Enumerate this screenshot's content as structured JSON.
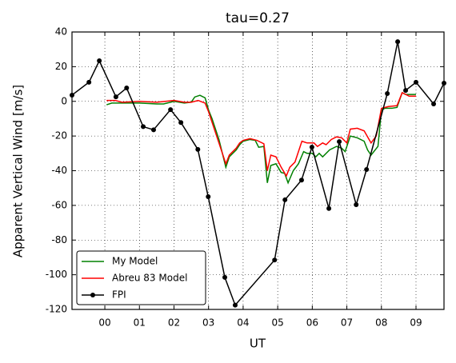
{
  "chart_data": {
    "type": "line",
    "title": "tau=0.27",
    "xlabel": "UT",
    "ylabel": "Apparent Vertical Wind [m/s]",
    "xlim": [
      -0.95,
      9.81
    ],
    "ylim": [
      -120,
      40
    ],
    "xticks": [
      {
        "value": 0,
        "label": "00"
      },
      {
        "value": 1,
        "label": "01"
      },
      {
        "value": 2,
        "label": "02"
      },
      {
        "value": 3,
        "label": "03"
      },
      {
        "value": 4,
        "label": "04"
      },
      {
        "value": 5,
        "label": "05"
      },
      {
        "value": 6,
        "label": "06"
      },
      {
        "value": 7,
        "label": "07"
      },
      {
        "value": 8,
        "label": "08"
      },
      {
        "value": 9,
        "label": "09"
      }
    ],
    "yticks": [
      -120,
      -100,
      -80,
      -60,
      -40,
      -20,
      0,
      20,
      40
    ],
    "grid": true,
    "legend": "lower left",
    "series": [
      {
        "name": "My Model",
        "color": "#008000",
        "marker": false,
        "x": [
          0.05,
          0.2,
          0.5,
          1.0,
          1.5,
          1.7,
          2.0,
          2.3,
          2.5,
          2.6,
          2.75,
          2.9,
          3.0,
          3.1,
          3.3,
          3.5,
          3.6,
          3.8,
          3.9,
          4.0,
          4.2,
          4.35,
          4.45,
          4.6,
          4.7,
          4.8,
          4.95,
          5.1,
          5.2,
          5.3,
          5.45,
          5.6,
          5.75,
          5.85,
          6.0,
          6.1,
          6.2,
          6.3,
          6.5,
          6.7,
          6.85,
          6.95,
          7.1,
          7.3,
          7.5,
          7.6,
          7.7,
          7.9,
          8.0,
          8.1,
          8.3,
          8.45,
          8.6,
          8.7,
          8.8,
          9.0
        ],
        "values": [
          -2,
          -1,
          -1,
          -1,
          -1.5,
          -1.5,
          0,
          -1,
          -0.5,
          2.5,
          3.5,
          2,
          -5,
          -10,
          -22,
          -38,
          -32,
          -28,
          -25,
          -23,
          -22,
          -22.5,
          -26.5,
          -26,
          -47,
          -37,
          -36,
          -41,
          -41.5,
          -47,
          -40,
          -36,
          -29,
          -30,
          -30,
          -32,
          -30,
          -32,
          -28,
          -26,
          -27,
          -29,
          -20,
          -21,
          -23,
          -28,
          -31,
          -26,
          -5,
          -4,
          -4,
          -3.5,
          5,
          4,
          4,
          4
        ]
      },
      {
        "name": "Abreu 83 Model",
        "color": "#ff0000",
        "marker": false,
        "x": [
          0.05,
          0.3,
          0.5,
          1.0,
          1.5,
          2.0,
          2.3,
          2.5,
          2.7,
          2.9,
          3.0,
          3.1,
          3.3,
          3.5,
          3.6,
          3.8,
          3.9,
          4.0,
          4.2,
          4.4,
          4.6,
          4.7,
          4.8,
          4.95,
          5.1,
          5.25,
          5.35,
          5.5,
          5.7,
          5.85,
          6.05,
          6.15,
          6.3,
          6.4,
          6.55,
          6.7,
          6.85,
          7.0,
          7.1,
          7.3,
          7.5,
          7.7,
          7.85,
          8.0,
          8.2,
          8.45,
          8.6,
          8.8,
          9.0
        ],
        "values": [
          0.5,
          0.5,
          -0.5,
          0,
          -0.5,
          0.5,
          -0.5,
          -0.5,
          0.5,
          -1,
          -6,
          -12,
          -24,
          -36,
          -31,
          -27,
          -24,
          -22.5,
          -21.5,
          -22.5,
          -24.5,
          -40,
          -31,
          -32,
          -38,
          -43,
          -38,
          -35,
          -23,
          -24,
          -24,
          -26,
          -24,
          -25,
          -22,
          -20.5,
          -21,
          -24,
          -16,
          -15.5,
          -17,
          -24,
          -20,
          -4,
          -3,
          -2.5,
          5,
          3,
          3
        ]
      },
      {
        "name": "FPI",
        "color": "#000000",
        "marker": true,
        "x": [
          -0.95,
          -0.46,
          -0.16,
          0.32,
          0.63,
          1.11,
          1.41,
          1.9,
          2.2,
          2.69,
          2.99,
          3.47,
          3.77,
          4.91,
          5.21,
          5.69,
          5.99,
          6.48,
          6.78,
          7.27,
          7.57,
          8.17,
          8.47,
          8.7,
          9.0,
          9.51,
          9.81
        ],
        "values": [
          3.6,
          11,
          23.4,
          2.6,
          7.7,
          -14.6,
          -16.4,
          -4.8,
          -12.2,
          -27.7,
          -55,
          -101.5,
          -117.5,
          -91.5,
          -56.8,
          -45.4,
          -26.4,
          -61.8,
          -23.2,
          -59.6,
          -39.3,
          4.5,
          34.4,
          6.3,
          11,
          -1.5,
          10.5
        ]
      }
    ]
  }
}
